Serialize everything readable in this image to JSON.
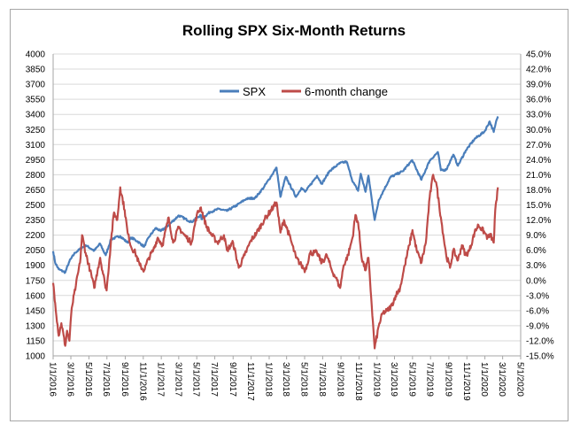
{
  "chart_data": {
    "type": "line",
    "title": "Rolling SPX Six-Month Returns",
    "legend": {
      "placement": "top-center",
      "entries": [
        "SPX",
        "6-month change"
      ]
    },
    "colors": {
      "SPX": "#4a7ebb",
      "6-month change": "#be4b48",
      "gridline": "#d9d9d9",
      "axis": "#a6a6a6"
    },
    "grid": {
      "horizontal": true,
      "vertical": false
    },
    "x_axis": {
      "type": "date",
      "range": [
        "2016-01-01",
        "2020-05-01"
      ],
      "tick_labels": [
        "1/1/2016",
        "3/1/2016",
        "5/1/2016",
        "7/1/2016",
        "9/1/2016",
        "11/1/2016",
        "1/1/2017",
        "3/1/2017",
        "5/1/2017",
        "7/1/2017",
        "9/1/2017",
        "11/1/2017",
        "1/1/2018",
        "3/1/2018",
        "5/1/2018",
        "7/1/2018",
        "9/1/2018",
        "11/1/2018",
        "1/1/2019",
        "3/1/2019",
        "5/1/2019",
        "7/1/2019",
        "9/1/2019",
        "11/1/2019",
        "1/1/2020",
        "3/1/2020",
        "5/1/2020"
      ]
    },
    "y_left": {
      "range": [
        1000,
        4000
      ],
      "tick_labels": [
        "1000",
        "1150",
        "1300",
        "1450",
        "1600",
        "1750",
        "1900",
        "2050",
        "2200",
        "2350",
        "2500",
        "2650",
        "2800",
        "2950",
        "3100",
        "3250",
        "3400",
        "3550",
        "3700",
        "3850",
        "4000"
      ]
    },
    "y_right": {
      "range": [
        -15,
        45
      ],
      "unit": "%",
      "tick_labels": [
        "-15.0%",
        "-12.0%",
        "-9.0%",
        "-6.0%",
        "-3.0%",
        "0.0%",
        "3.0%",
        "6.0%",
        "9.0%",
        "12.0%",
        "15.0%",
        "18.0%",
        "21.0%",
        "24.0%",
        "27.0%",
        "30.0%",
        "33.0%",
        "36.0%",
        "39.0%",
        "42.0%",
        "45.0%"
      ]
    },
    "series": [
      {
        "name": "SPX",
        "axis": "left",
        "points": [
          [
            "2016-01-01",
            2040
          ],
          [
            "2016-01-08",
            1925
          ],
          [
            "2016-01-20",
            1860
          ],
          [
            "2016-02-11",
            1830
          ],
          [
            "2016-02-25",
            1940
          ],
          [
            "2016-03-15",
            2025
          ],
          [
            "2016-04-20",
            2100
          ],
          [
            "2016-05-19",
            2045
          ],
          [
            "2016-06-08",
            2115
          ],
          [
            "2016-06-24",
            2015
          ],
          [
            "2016-06-27",
            2000
          ],
          [
            "2016-07-15",
            2160
          ],
          [
            "2016-08-15",
            2190
          ],
          [
            "2016-09-09",
            2125
          ],
          [
            "2016-09-22",
            2175
          ],
          [
            "2016-10-14",
            2135
          ],
          [
            "2016-11-04",
            2085
          ],
          [
            "2016-11-20",
            2180
          ],
          [
            "2016-12-13",
            2270
          ],
          [
            "2016-12-30",
            2240
          ],
          [
            "2017-01-26",
            2300
          ],
          [
            "2017-03-01",
            2395
          ],
          [
            "2017-04-13",
            2330
          ],
          [
            "2017-05-15",
            2400
          ],
          [
            "2017-05-17",
            2360
          ],
          [
            "2017-06-15",
            2430
          ],
          [
            "2017-07-15",
            2460
          ],
          [
            "2017-08-11",
            2440
          ],
          [
            "2017-09-15",
            2500
          ],
          [
            "2017-10-15",
            2560
          ],
          [
            "2017-11-15",
            2570
          ],
          [
            "2017-12-15",
            2680
          ],
          [
            "2018-01-26",
            2870
          ],
          [
            "2018-02-08",
            2580
          ],
          [
            "2018-02-26",
            2780
          ],
          [
            "2018-04-02",
            2580
          ],
          [
            "2018-04-20",
            2670
          ],
          [
            "2018-05-03",
            2630
          ],
          [
            "2018-06-12",
            2790
          ],
          [
            "2018-06-28",
            2710
          ],
          [
            "2018-07-25",
            2840
          ],
          [
            "2018-08-29",
            2915
          ],
          [
            "2018-09-20",
            2930
          ],
          [
            "2018-10-11",
            2730
          ],
          [
            "2018-10-29",
            2640
          ],
          [
            "2018-11-07",
            2810
          ],
          [
            "2018-11-23",
            2630
          ],
          [
            "2018-12-03",
            2790
          ],
          [
            "2018-12-24",
            2350
          ],
          [
            "2019-01-07",
            2550
          ],
          [
            "2019-02-15",
            2775
          ],
          [
            "2019-03-29",
            2835
          ],
          [
            "2019-04-30",
            2945
          ],
          [
            "2019-05-31",
            2750
          ],
          [
            "2019-06-28",
            2940
          ],
          [
            "2019-07-26",
            3025
          ],
          [
            "2019-08-05",
            2845
          ],
          [
            "2019-08-23",
            2850
          ],
          [
            "2019-09-16",
            3000
          ],
          [
            "2019-10-02",
            2890
          ],
          [
            "2019-10-28",
            3040
          ],
          [
            "2019-11-27",
            3155
          ],
          [
            "2019-12-31",
            3230
          ],
          [
            "2020-01-17",
            3330
          ],
          [
            "2020-01-31",
            3225
          ],
          [
            "2020-02-10",
            3350
          ],
          [
            "2020-02-14",
            3380
          ]
        ]
      },
      {
        "name": "6-month change",
        "axis": "right",
        "points": [
          [
            "2016-01-01",
            -0.5
          ],
          [
            "2016-01-08",
            -4.5
          ],
          [
            "2016-01-20",
            -11.0
          ],
          [
            "2016-01-29",
            -8.5
          ],
          [
            "2016-02-11",
            -13.0
          ],
          [
            "2016-02-17",
            -10.0
          ],
          [
            "2016-02-25",
            -12.0
          ],
          [
            "2016-03-04",
            -5.5
          ],
          [
            "2016-03-18",
            -1.0
          ],
          [
            "2016-04-01",
            3.5
          ],
          [
            "2016-04-08",
            9.0
          ],
          [
            "2016-04-20",
            5.5
          ],
          [
            "2016-05-05",
            2.0
          ],
          [
            "2016-05-19",
            -1.5
          ],
          [
            "2016-06-01",
            2.5
          ],
          [
            "2016-06-08",
            4.5
          ],
          [
            "2016-06-24",
            -0.5
          ],
          [
            "2016-06-30",
            -2.0
          ],
          [
            "2016-07-15",
            8.0
          ],
          [
            "2016-07-25",
            13.5
          ],
          [
            "2016-08-05",
            12.0
          ],
          [
            "2016-08-15",
            18.5
          ],
          [
            "2016-08-30",
            14.0
          ],
          [
            "2016-09-09",
            9.5
          ],
          [
            "2016-09-22",
            6.5
          ],
          [
            "2016-10-05",
            5.5
          ],
          [
            "2016-10-20",
            3.0
          ],
          [
            "2016-11-04",
            2.0
          ],
          [
            "2016-11-20",
            4.5
          ],
          [
            "2016-12-05",
            6.0
          ],
          [
            "2016-12-20",
            8.5
          ],
          [
            "2017-01-05",
            7.0
          ],
          [
            "2017-01-26",
            12.5
          ],
          [
            "2017-02-10",
            7.5
          ],
          [
            "2017-03-01",
            10.5
          ],
          [
            "2017-03-20",
            9.0
          ],
          [
            "2017-04-13",
            7.5
          ],
          [
            "2017-05-01",
            13.0
          ],
          [
            "2017-05-15",
            14.5
          ],
          [
            "2017-06-01",
            11.0
          ],
          [
            "2017-06-15",
            9.5
          ],
          [
            "2017-07-10",
            7.5
          ],
          [
            "2017-08-01",
            9.0
          ],
          [
            "2017-08-11",
            6.0
          ],
          [
            "2017-09-01",
            7.5
          ],
          [
            "2017-09-20",
            2.5
          ],
          [
            "2017-10-10",
            5.0
          ],
          [
            "2017-11-01",
            8.0
          ],
          [
            "2017-11-20",
            9.5
          ],
          [
            "2017-12-15",
            12.0
          ],
          [
            "2018-01-26",
            15.5
          ],
          [
            "2018-02-08",
            9.5
          ],
          [
            "2018-02-20",
            12.0
          ],
          [
            "2018-03-10",
            9.0
          ],
          [
            "2018-04-02",
            4.5
          ],
          [
            "2018-04-20",
            3.0
          ],
          [
            "2018-05-03",
            2.0
          ],
          [
            "2018-05-20",
            5.5
          ],
          [
            "2018-06-12",
            5.5
          ],
          [
            "2018-06-28",
            3.5
          ],
          [
            "2018-07-15",
            5.0
          ],
          [
            "2018-08-01",
            2.0
          ],
          [
            "2018-08-15",
            0.5
          ],
          [
            "2018-08-29",
            -1.5
          ],
          [
            "2018-09-10",
            3.0
          ],
          [
            "2018-09-25",
            5.0
          ],
          [
            "2018-10-10",
            8.5
          ],
          [
            "2018-10-20",
            13.0
          ],
          [
            "2018-10-29",
            11.5
          ],
          [
            "2018-11-10",
            4.5
          ],
          [
            "2018-11-23",
            2.0
          ],
          [
            "2018-12-03",
            4.5
          ],
          [
            "2018-12-14",
            -5.0
          ],
          [
            "2018-12-24",
            -13.5
          ],
          [
            "2019-01-07",
            -9.0
          ],
          [
            "2019-01-20",
            -6.5
          ],
          [
            "2019-02-05",
            -6.0
          ],
          [
            "2019-02-20",
            -5.0
          ],
          [
            "2019-03-05",
            -3.0
          ],
          [
            "2019-03-20",
            -1.5
          ],
          [
            "2019-04-05",
            3.0
          ],
          [
            "2019-04-20",
            7.0
          ],
          [
            "2019-05-01",
            10.0
          ],
          [
            "2019-05-15",
            6.0
          ],
          [
            "2019-05-31",
            3.5
          ],
          [
            "2019-06-15",
            7.5
          ],
          [
            "2019-06-28",
            16.5
          ],
          [
            "2019-07-10",
            21.0
          ],
          [
            "2019-07-20",
            19.5
          ],
          [
            "2019-08-05",
            12.5
          ],
          [
            "2019-08-23",
            5.0
          ],
          [
            "2019-09-05",
            2.5
          ],
          [
            "2019-09-16",
            6.0
          ],
          [
            "2019-10-02",
            4.0
          ],
          [
            "2019-10-15",
            7.0
          ],
          [
            "2019-10-28",
            5.0
          ],
          [
            "2019-11-10",
            6.0
          ],
          [
            "2019-11-27",
            9.5
          ],
          [
            "2019-12-10",
            11.0
          ],
          [
            "2019-12-31",
            9.5
          ],
          [
            "2020-01-10",
            8.5
          ],
          [
            "2020-01-20",
            9.0
          ],
          [
            "2020-01-31",
            7.5
          ],
          [
            "2020-02-05",
            14.0
          ],
          [
            "2020-02-10",
            16.0
          ],
          [
            "2020-02-14",
            18.5
          ]
        ]
      }
    ]
  }
}
